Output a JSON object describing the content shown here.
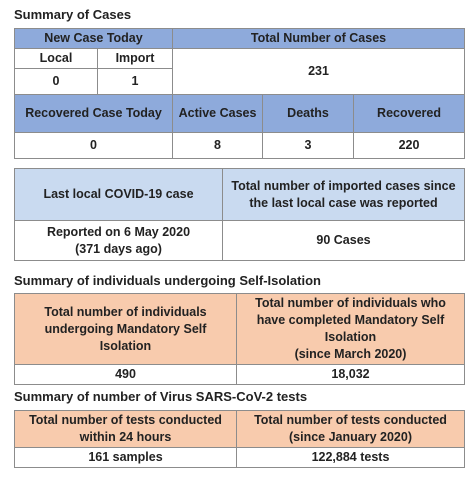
{
  "cases": {
    "title": "Summary of Cases",
    "new_case_today": "New Case Today",
    "total_header": "Total Number of Cases",
    "local_label": "Local",
    "import_label": "Import",
    "local": "0",
    "import": "1",
    "total": "231",
    "recovered_today_label": "Recovered Case Today",
    "active_label": "Active Cases",
    "deaths_label": "Deaths",
    "recovered_label": "Recovered",
    "recovered_today": "0",
    "active": "8",
    "deaths": "3",
    "recovered": "220"
  },
  "local_case": {
    "header": [
      "Last local COVID-19 case",
      "Total number of imported cases since the last local case was reported"
    ],
    "row": [
      "Reported on 6 May 2020\n(371 days ago)",
      "90 Cases"
    ]
  },
  "isolation": {
    "title": "Summary of individuals undergoing Self-Isolation",
    "header": [
      "Total number of individuals undergoing Mandatory Self Isolation",
      "Total number of individuals who have completed Mandatory Self Isolation\n(since March 2020)"
    ],
    "row": [
      "490",
      "18,032"
    ]
  },
  "tests": {
    "title": "Summary of number of Virus SARS-CoV-2 tests",
    "header": [
      "Total number of tests conducted within 24 hours",
      "Total number of tests conducted\n(since January 2020)"
    ],
    "row": [
      "161 samples",
      "122,884 tests"
    ]
  }
}
